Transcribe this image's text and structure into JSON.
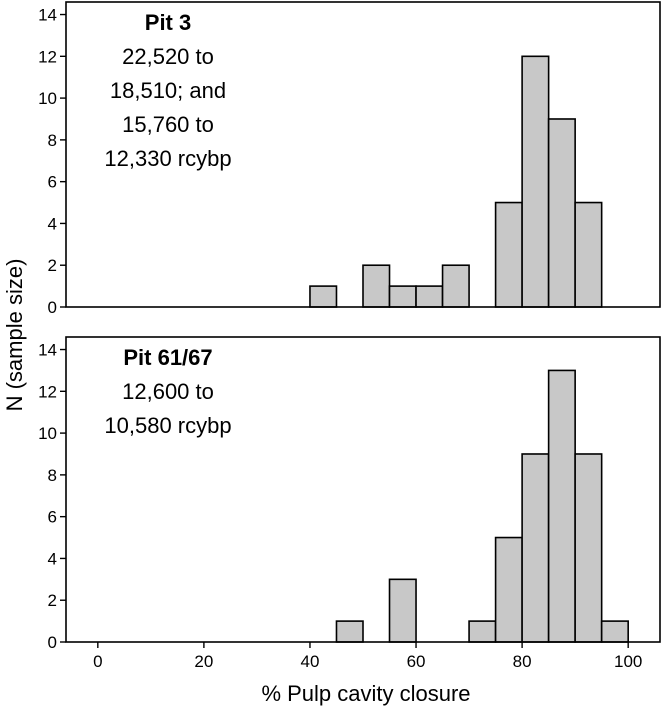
{
  "chart_data": {
    "type": "bar",
    "xlabel": "% Pulp cavity closure",
    "ylabel": "N (sample size)",
    "xlim": [
      -6,
      106
    ],
    "xticks": [
      0,
      20,
      40,
      60,
      80,
      100
    ],
    "bin_width": 5,
    "panels": [
      {
        "annotation": {
          "title": "Pit 3",
          "lines": [
            "22,520 to",
            "18,510; and",
            "15,760 to",
            "12,330 rcybp"
          ]
        },
        "ylim": [
          0,
          14.6
        ],
        "yticks": [
          0,
          2,
          4,
          6,
          8,
          10,
          12,
          14
        ],
        "bins": [
          {
            "start": 40,
            "value": 1
          },
          {
            "start": 50,
            "value": 2
          },
          {
            "start": 55,
            "value": 1
          },
          {
            "start": 60,
            "value": 1
          },
          {
            "start": 65,
            "value": 2
          },
          {
            "start": 75,
            "value": 5
          },
          {
            "start": 80,
            "value": 12
          },
          {
            "start": 85,
            "value": 9
          },
          {
            "start": 90,
            "value": 5
          }
        ]
      },
      {
        "annotation": {
          "title": "Pit 61/67",
          "lines": [
            "12,600 to",
            "10,580 rcybp"
          ]
        },
        "ylim": [
          0,
          14.6
        ],
        "yticks": [
          0,
          2,
          4,
          6,
          8,
          10,
          12,
          14
        ],
        "bins": [
          {
            "start": 45,
            "value": 1
          },
          {
            "start": 55,
            "value": 3
          },
          {
            "start": 70,
            "value": 1
          },
          {
            "start": 75,
            "value": 5
          },
          {
            "start": 80,
            "value": 9
          },
          {
            "start": 85,
            "value": 13
          },
          {
            "start": 90,
            "value": 9
          },
          {
            "start": 95,
            "value": 1
          }
        ]
      }
    ]
  }
}
